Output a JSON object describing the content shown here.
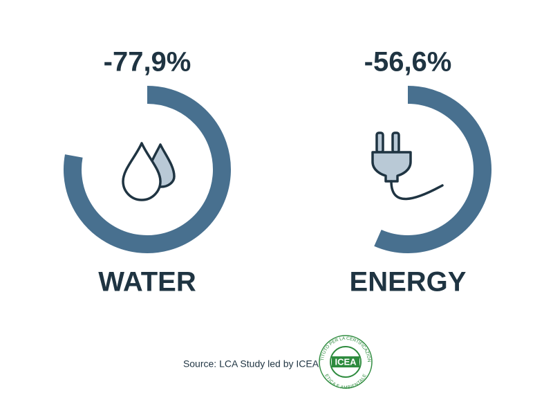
{
  "chart_data": [
    {
      "type": "gauge",
      "categories": [
        "WATER"
      ],
      "values": [
        -77.9
      ],
      "value_labels": [
        "-77,9%"
      ],
      "color": "#48708f",
      "ylim": [
        -100,
        0
      ]
    },
    {
      "type": "gauge",
      "categories": [
        "ENERGY"
      ],
      "values": [
        -56.6
      ],
      "value_labels": [
        "-56,6%"
      ],
      "color": "#48708f",
      "ylim": [
        -100,
        0
      ]
    }
  ],
  "footer": {
    "source": "Source: LCA Study led by ICEA",
    "logo": {
      "name": "ICEA",
      "ring_top": "ISTITUTO PER LA CERTIFICAZIONE",
      "ring_bottom": "ETICA E AMBIENTALE"
    }
  }
}
